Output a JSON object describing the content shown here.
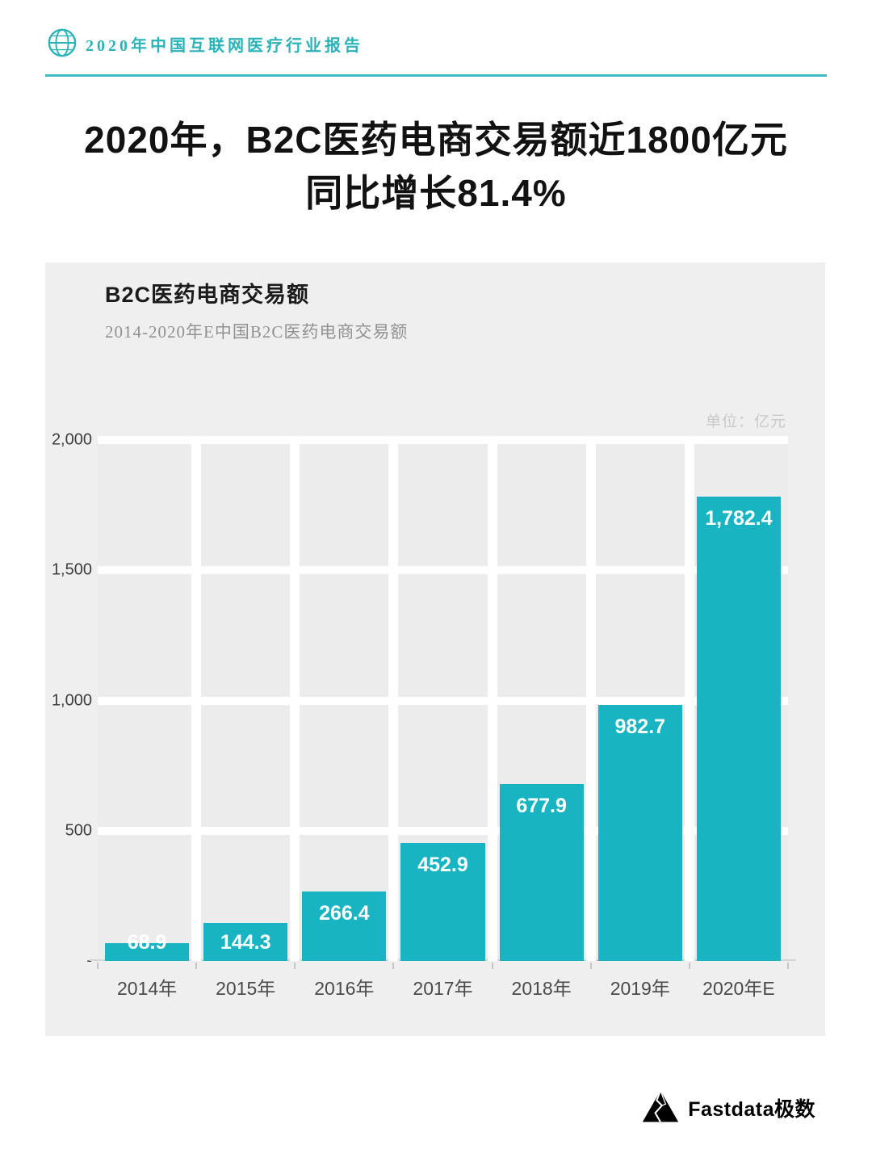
{
  "header": {
    "report_title": "2020年中国互联网医疗行业报告"
  },
  "headline": {
    "line1": "2020年，B2C医药电商交易额近1800亿元",
    "line2": "同比增长81.4%"
  },
  "chart_data": {
    "type": "bar",
    "title": "B2C医药电商交易额",
    "subtitle": "2014-2020年E中国B2C医药电商交易额",
    "unit_label": "单位：亿元",
    "unit": "亿元",
    "categories": [
      "2014年",
      "2015年",
      "2016年",
      "2017年",
      "2018年",
      "2019年",
      "2020年E"
    ],
    "values": [
      68.9,
      144.3,
      266.4,
      452.9,
      677.9,
      982.7,
      1782.4
    ],
    "value_labels": [
      "68.9",
      "144.3",
      "266.4",
      "452.9",
      "677.9",
      "982.7",
      "1,782.4"
    ],
    "ylim": [
      0,
      2000
    ],
    "yticks": [
      0,
      500,
      1000,
      1500,
      2000
    ],
    "ytick_labels": [
      "-",
      "500",
      "1,000",
      "1,500",
      "2,000"
    ],
    "bar_color": "#18b4c2",
    "grid": true,
    "legend": false
  },
  "footer": {
    "brand": "Fastdata极数"
  },
  "colors": {
    "accent": "#2bb3b9",
    "bar": "#18b4c2",
    "panel_background": "#efefef"
  }
}
